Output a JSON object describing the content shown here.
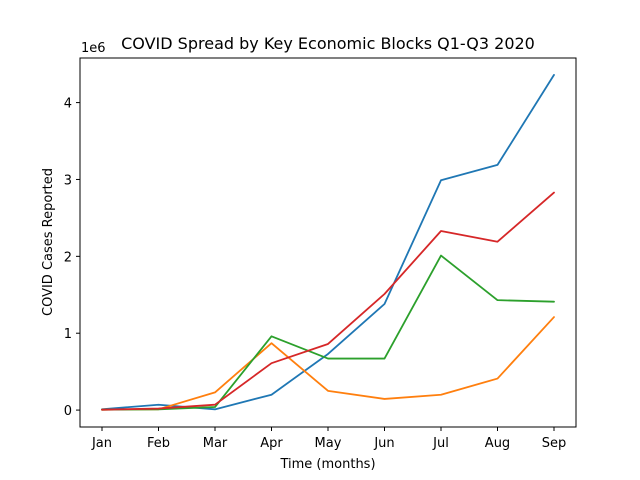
{
  "chart_data": {
    "type": "line",
    "title": "COVID Spread by Key Economic Blocks Q1-Q3 2020",
    "xlabel": "Time (months)",
    "ylabel": "COVID Cases Reported",
    "y_scale_label": "1e6",
    "categories": [
      "Jan",
      "Feb",
      "Mar",
      "Apr",
      "May",
      "Jun",
      "Jul",
      "Aug",
      "Sep"
    ],
    "ylim": [
      -220000,
      4580000
    ],
    "yticks": [
      0,
      1000000,
      2000000,
      3000000,
      4000000
    ],
    "ytick_labels": [
      "0",
      "1",
      "2",
      "3",
      "4"
    ],
    "grid": false,
    "series": [
      {
        "color": "#1f77b4",
        "values": [
          10000,
          70000,
          10000,
          200000,
          730000,
          1380000,
          2990000,
          3190000,
          4360000
        ]
      },
      {
        "color": "#ff7f0e",
        "values": [
          5000,
          10000,
          230000,
          870000,
          250000,
          145000,
          200000,
          410000,
          1210000
        ]
      },
      {
        "color": "#2ca02c",
        "values": [
          5000,
          10000,
          40000,
          960000,
          670000,
          670000,
          2010000,
          1430000,
          1410000
        ]
      },
      {
        "color": "#d62728",
        "values": [
          5000,
          20000,
          70000,
          610000,
          860000,
          1510000,
          2330000,
          2190000,
          2830000
        ]
      }
    ]
  }
}
